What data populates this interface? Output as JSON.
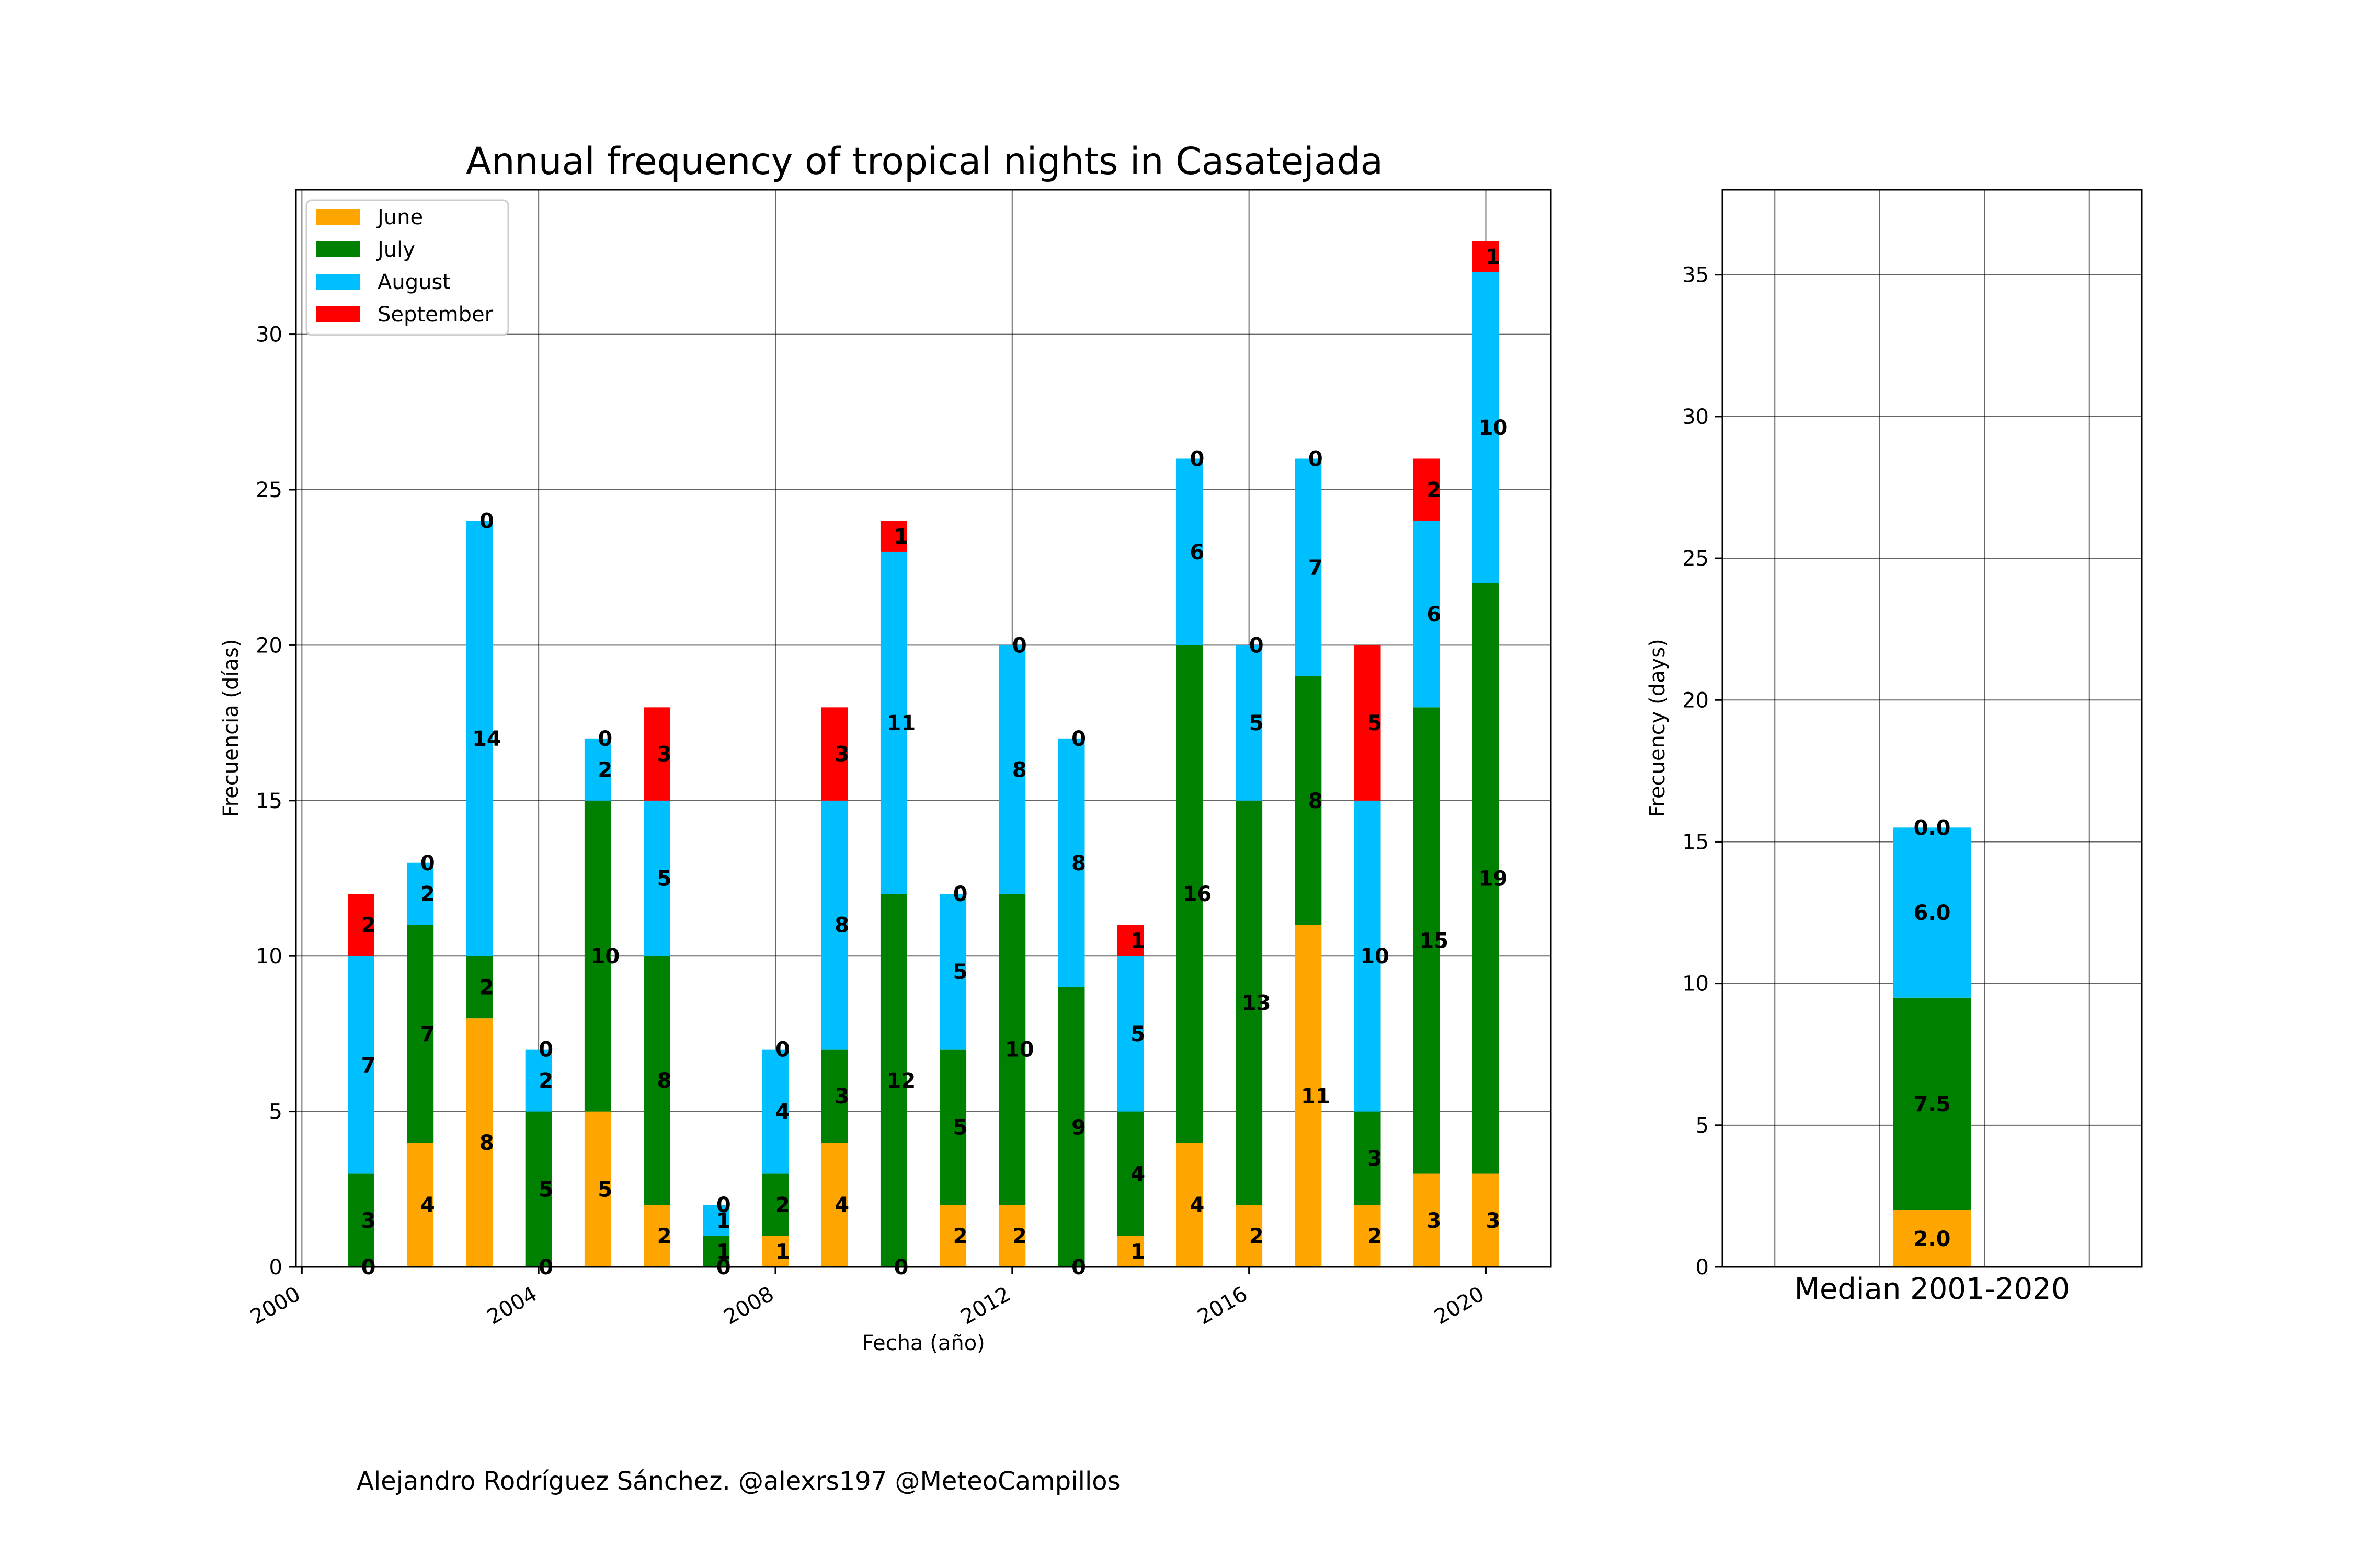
{
  "colors": {
    "June": "#FFA500",
    "July": "#008000",
    "August": "#00BFFF",
    "September": "#FF0000"
  },
  "credit": "Alejandro Rodríguez Sánchez. @alexrs197 @MeteoCampillos",
  "chart_data": [
    {
      "type": "bar",
      "stacked": true,
      "title": "Annual frequency of tropical nights in Casatejada",
      "xlabel": "Fecha (año)",
      "ylabel": "Frecuencia (días)",
      "xlim": [
        1999.9,
        2021.1
      ],
      "ylim": [
        0,
        34.65
      ],
      "xticks": [
        2000,
        2004,
        2008,
        2012,
        2016,
        2020
      ],
      "yticks": [
        0,
        5,
        10,
        15,
        20,
        25,
        30
      ],
      "grid": true,
      "legend_position": "upper-left",
      "categories": [
        2001,
        2002,
        2003,
        2004,
        2005,
        2006,
        2007,
        2008,
        2009,
        2010,
        2011,
        2012,
        2013,
        2014,
        2015,
        2016,
        2017,
        2018,
        2019,
        2020
      ],
      "series": [
        {
          "name": "June",
          "values": [
            0,
            4,
            8,
            0,
            5,
            2,
            0,
            1,
            4,
            0,
            2,
            2,
            0,
            1,
            4,
            2,
            11,
            2,
            3,
            3
          ]
        },
        {
          "name": "July",
          "values": [
            3,
            7,
            2,
            5,
            10,
            8,
            1,
            2,
            3,
            12,
            5,
            10,
            9,
            4,
            16,
            13,
            8,
            3,
            15,
            19
          ]
        },
        {
          "name": "August",
          "values": [
            7,
            2,
            14,
            2,
            2,
            5,
            1,
            4,
            8,
            11,
            5,
            8,
            8,
            5,
            6,
            5,
            7,
            10,
            6,
            10
          ]
        },
        {
          "name": "September",
          "values": [
            2,
            0,
            0,
            0,
            0,
            3,
            0,
            0,
            3,
            1,
            0,
            0,
            0,
            1,
            0,
            0,
            0,
            5,
            2,
            1
          ]
        }
      ]
    },
    {
      "type": "bar",
      "stacked": true,
      "title": "",
      "xlabel": "",
      "ylabel": "Frecuency (days)",
      "ylim": [
        0,
        38
      ],
      "yticks": [
        0,
        5,
        10,
        15,
        20,
        25,
        30,
        35
      ],
      "grid": true,
      "categories": [
        "Median 2001-2020"
      ],
      "series": [
        {
          "name": "June",
          "values": [
            2.0
          ]
        },
        {
          "name": "July",
          "values": [
            7.5
          ]
        },
        {
          "name": "August",
          "values": [
            6.0
          ]
        },
        {
          "name": "September",
          "values": [
            0.0
          ]
        }
      ]
    }
  ]
}
